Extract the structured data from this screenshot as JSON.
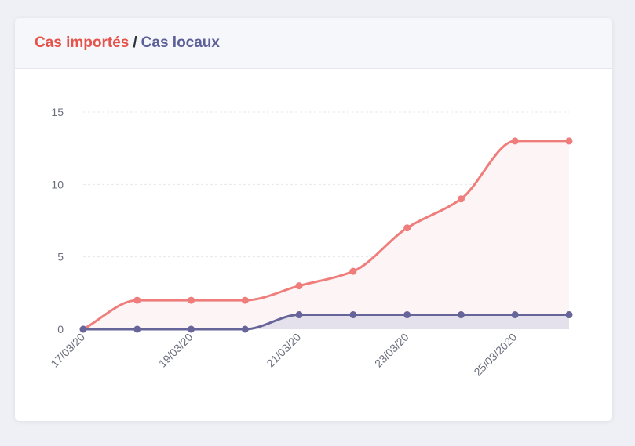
{
  "header": {
    "title_imported": "Cas importés",
    "title_separator": "/",
    "title_local": "Cas locaux"
  },
  "colors": {
    "imported": "#ee7d7b",
    "imported_fill": "#fdf5f5",
    "local": "#676499",
    "local_fill": "#e4e0ec",
    "axis_text": "#6b6f7d",
    "grid": "#e6e8ee"
  },
  "chart_data": {
    "type": "area",
    "title": "",
    "xlabel": "",
    "ylabel": "",
    "ylim": [
      0,
      15
    ],
    "yticks": [
      0,
      5,
      10,
      15
    ],
    "grid": true,
    "x": [
      "17/03/20",
      "18/03/20",
      "19/03/20",
      "20/03/20",
      "21/03/20",
      "22/03/20",
      "23/03/20",
      "24/03/20",
      "25/03/2020",
      "26/03/2020"
    ],
    "xtick_labels": [
      "17/03/20",
      "19/03/20",
      "21/03/20",
      "23/03/20",
      "25/03/2020"
    ],
    "series": [
      {
        "name": "Cas importés",
        "values": [
          0,
          2,
          2,
          2,
          3,
          4,
          7,
          9,
          13,
          13
        ]
      },
      {
        "name": "Cas locaux",
        "values": [
          0,
          0,
          0,
          0,
          1,
          1,
          1,
          1,
          1,
          1
        ]
      }
    ]
  }
}
